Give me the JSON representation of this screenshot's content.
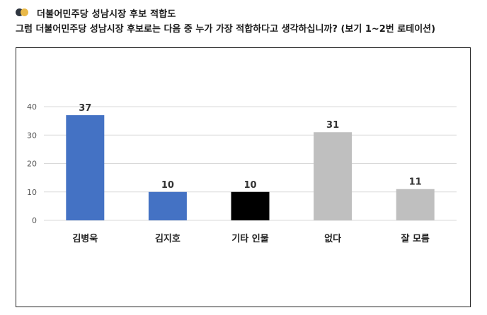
{
  "header": {
    "title": "더불어민주당 성남시장 후보 적합도",
    "question": "그럼 더불어민주당 성남시장 후보로는 다음 중 누가 가장 적합하다고 생각하십니까? (보기 1~2번 로테이션)"
  },
  "colors": {
    "accent_dark": "#2f3640",
    "accent_gold": "#e9b949"
  },
  "chart_data": {
    "type": "bar",
    "categories": [
      "김병욱",
      "김지호",
      "기타 인물",
      "없다",
      "잘 모름"
    ],
    "values": [
      37,
      10,
      10,
      31,
      11
    ],
    "colors": [
      "#4472c4",
      "#4472c4",
      "#000000",
      "#bfbfbf",
      "#bfbfbf"
    ],
    "title": "",
    "xlabel": "",
    "ylabel": "",
    "ylim": [
      0,
      40
    ],
    "yticks": [
      0,
      10,
      20,
      30,
      40
    ],
    "grid": true,
    "data_labels": true
  }
}
